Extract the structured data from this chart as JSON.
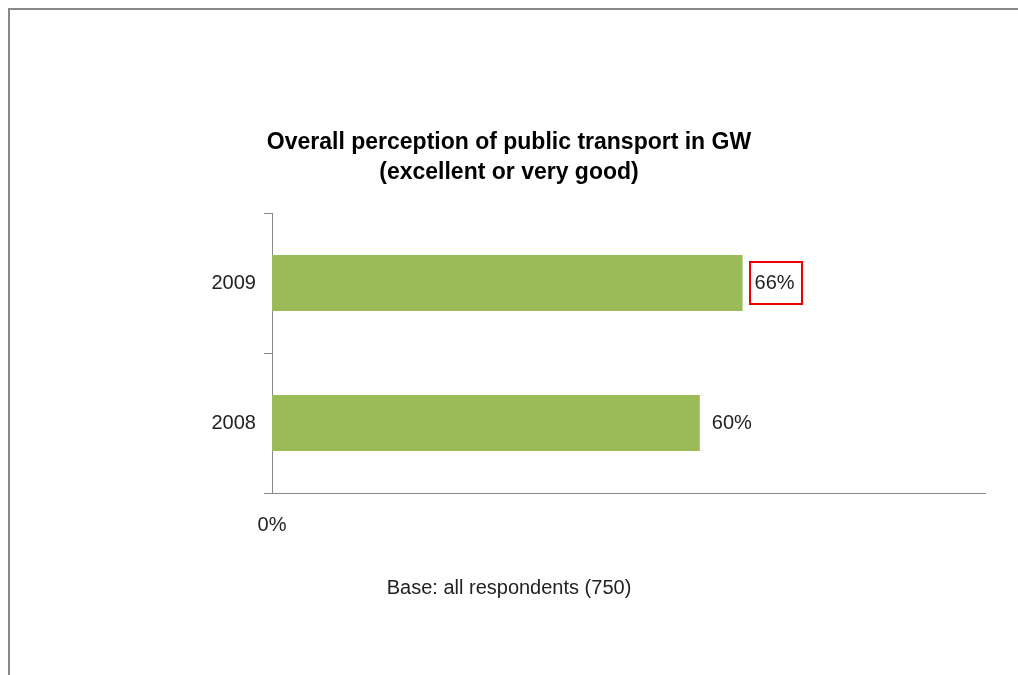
{
  "chart_data": {
    "type": "bar",
    "orientation": "horizontal",
    "title": "Overall perception of public transport in GW",
    "subtitle": "(excellent or very good)",
    "categories": [
      "2009",
      "2008"
    ],
    "values": [
      66,
      60
    ],
    "color": "#9bbb59",
    "value_labels": [
      "66%",
      "60%"
    ],
    "xlim": [
      0,
      100
    ],
    "annotations": [
      "0%",
      "Base: all respondents (750)"
    ],
    "legend": false
  }
}
